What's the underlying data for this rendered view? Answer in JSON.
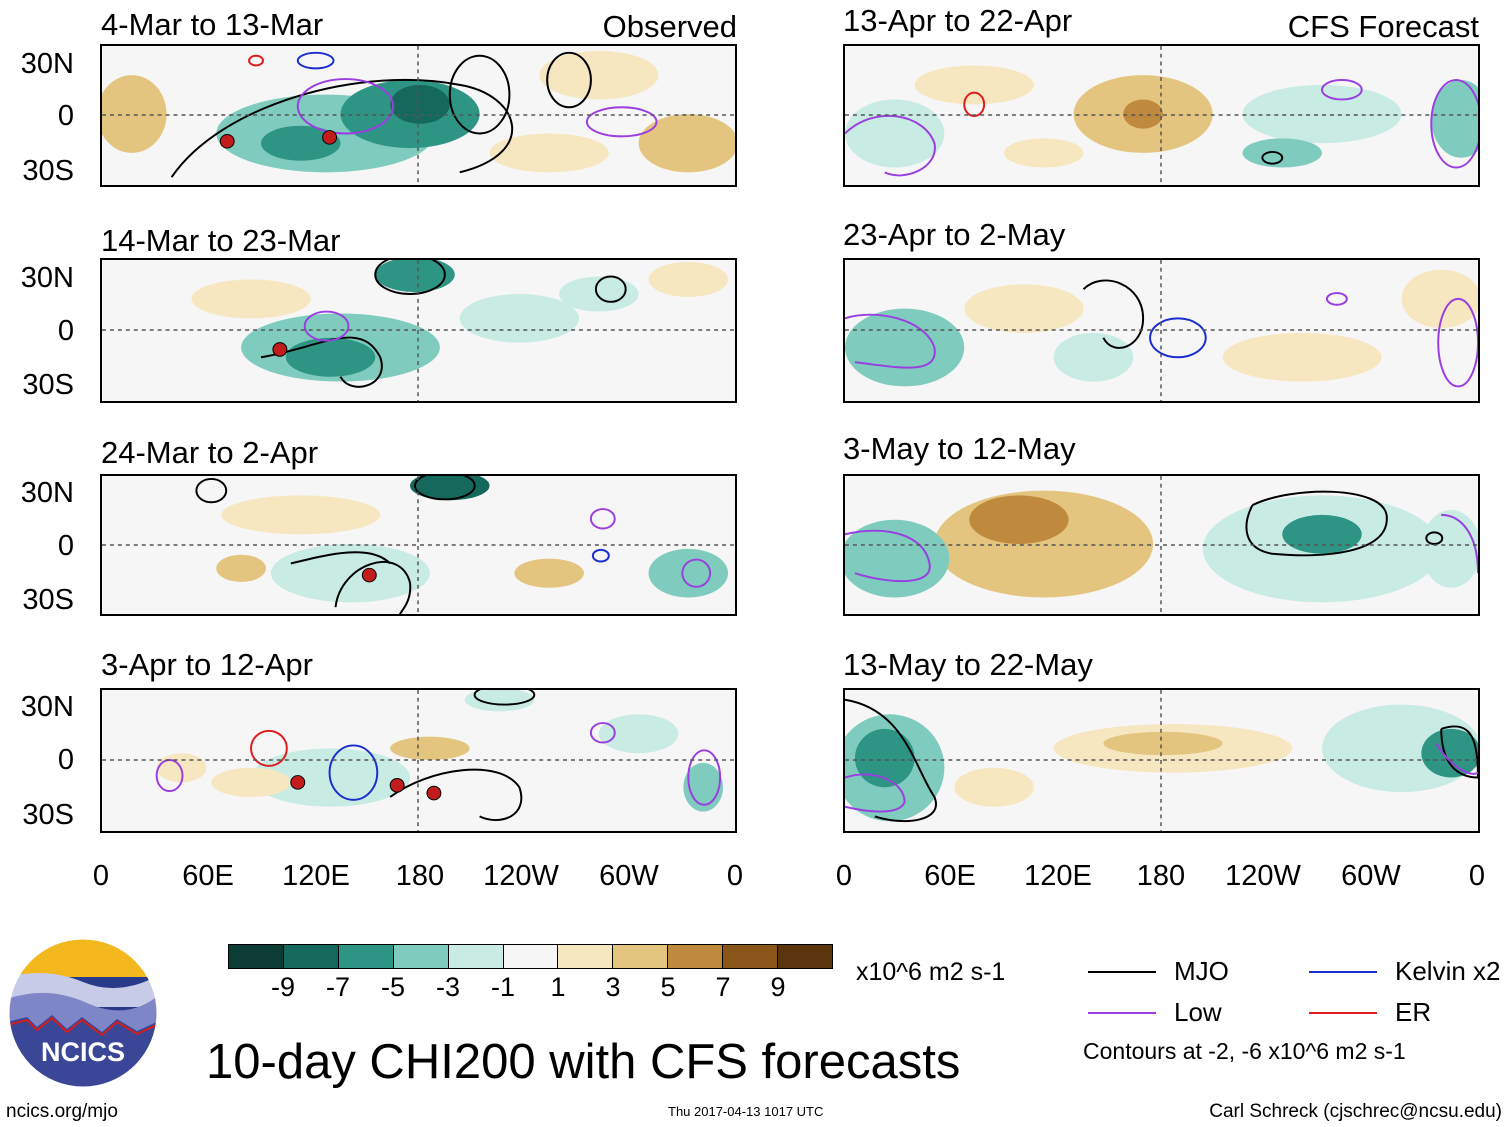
{
  "panels": [
    {
      "title": "4-Mar to 13-Mar",
      "label": "Observed"
    },
    {
      "title": "14-Mar to 23-Mar",
      "label": ""
    },
    {
      "title": "24-Mar to 2-Apr",
      "label": ""
    },
    {
      "title": "3-Apr to 12-Apr",
      "label": ""
    },
    {
      "title": "13-Apr to 22-Apr",
      "label": "CFS Forecast"
    },
    {
      "title": "23-Apr to 2-May",
      "label": ""
    },
    {
      "title": "3-May to 12-May",
      "label": ""
    },
    {
      "title": "13-May to 22-May",
      "label": ""
    }
  ],
  "lat_labels": [
    "30N",
    "0",
    "30S"
  ],
  "lon_labels": [
    "0",
    "60E",
    "120E",
    "180",
    "120W",
    "60W",
    "0"
  ],
  "colorbar": {
    "ticks": [
      "-9",
      "-7",
      "-5",
      "-3",
      "-1",
      "1",
      "3",
      "5",
      "7",
      "9"
    ],
    "colors": [
      "#0b3d34",
      "#15695c",
      "#2e9585",
      "#7fccbe",
      "#c8ebe3",
      "#f6f6f6",
      "#f6e7c0",
      "#e4c57f",
      "#c08a3e",
      "#8a561a",
      "#5a350d"
    ],
    "units": "x10^6 m2 s-1"
  },
  "legend": [
    {
      "label": "MJO",
      "color": "#000000"
    },
    {
      "label": "Kelvin x2",
      "color": "#1a2ecf"
    },
    {
      "label": "Low",
      "color": "#9a3ee0"
    },
    {
      "label": "ER",
      "color": "#e01b1b"
    }
  ],
  "contour_note": "Contours at -2, -6 x10^6 m2 s-1",
  "logo_text": "NCICS",
  "main_title": "10-day CHI200 with CFS forecasts",
  "footer": {
    "left": "ncics.org/mjo",
    "center": "Thu 2017-04-13 1017 UTC",
    "right": "Carl Schreck (cjschrec@ncsu.edu)"
  }
}
